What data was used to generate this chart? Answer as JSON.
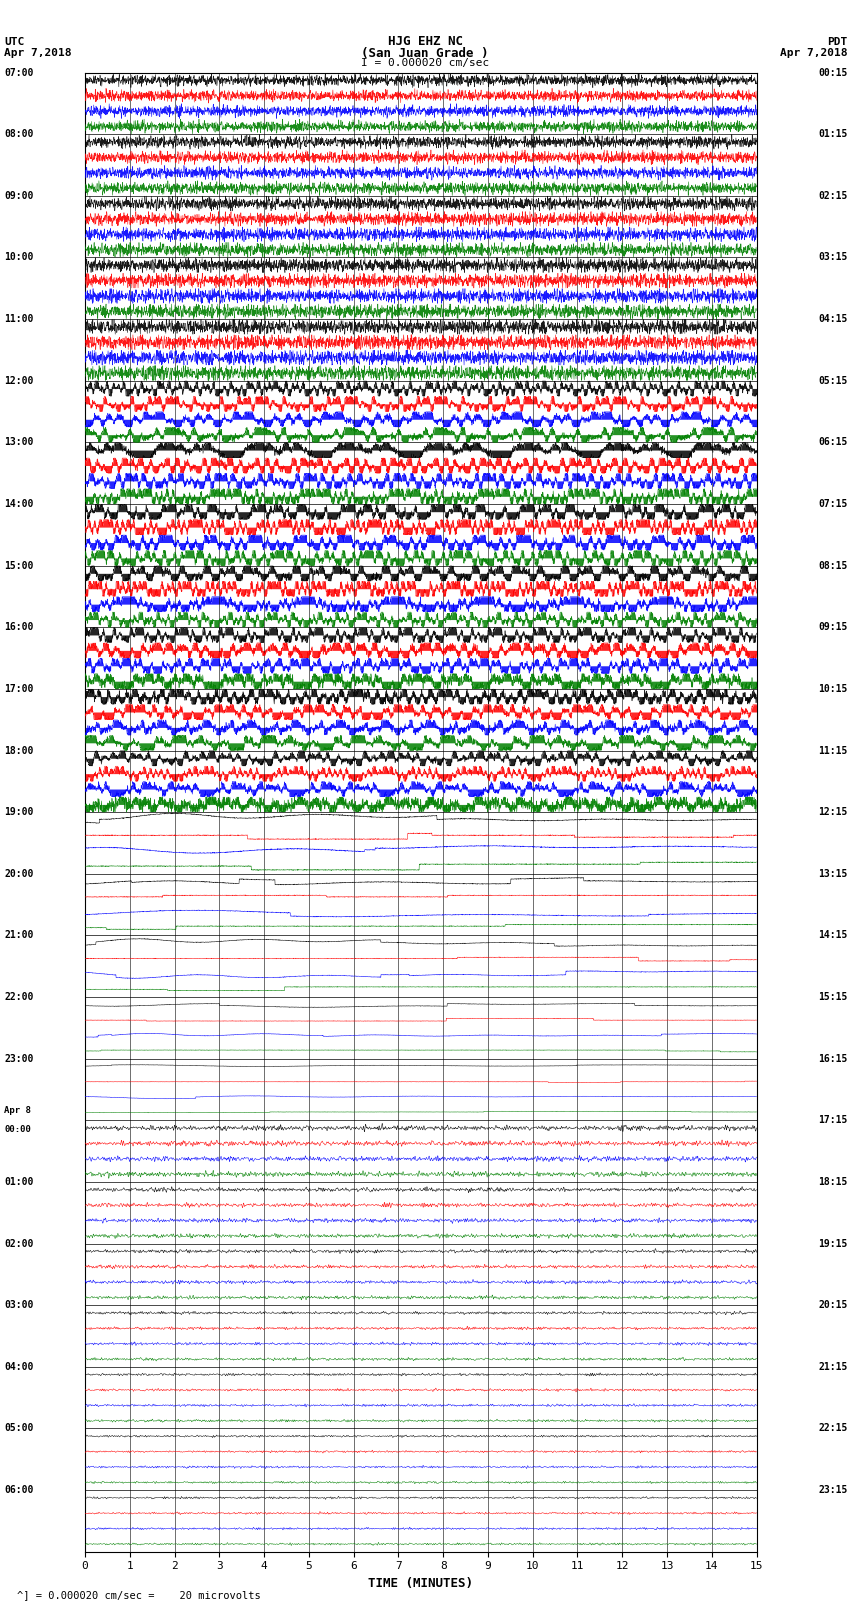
{
  "title_line1": "HJG EHZ NC",
  "title_line2": "(San Juan Grade )",
  "title_line3": "I = 0.000020 cm/sec",
  "label_left_top1": "UTC",
  "label_left_top2": "Apr 7,2018",
  "label_right_top1": "PDT",
  "label_right_top2": "Apr 7,2018",
  "xlabel": "TIME (MINUTES)",
  "footer": "^] = 0.000020 cm/sec =    20 microvolts",
  "x_min": 0,
  "x_max": 15,
  "x_ticks": [
    0,
    1,
    2,
    3,
    4,
    5,
    6,
    7,
    8,
    9,
    10,
    11,
    12,
    13,
    14,
    15
  ],
  "background_color": "#ffffff",
  "colors_cycle": [
    "black",
    "red",
    "blue",
    "green"
  ],
  "fig_width": 8.5,
  "fig_height": 16.13,
  "dpi": 100,
  "utc_labels": [
    "07:00",
    "08:00",
    "09:00",
    "10:00",
    "11:00",
    "12:00",
    "13:00",
    "14:00",
    "15:00",
    "16:00",
    "17:00",
    "18:00",
    "19:00",
    "20:00",
    "21:00",
    "22:00",
    "23:00",
    "Apr 8\n00:00",
    "01:00",
    "02:00",
    "03:00",
    "04:00",
    "05:00",
    "06:00"
  ],
  "pdt_labels": [
    "00:15",
    "01:15",
    "02:15",
    "03:15",
    "04:15",
    "05:15",
    "06:15",
    "07:15",
    "08:15",
    "09:15",
    "10:15",
    "11:15",
    "12:15",
    "13:15",
    "14:15",
    "15:15",
    "16:15",
    "17:15",
    "18:15",
    "19:15",
    "20:15",
    "21:15",
    "22:15",
    "23:15"
  ],
  "n_hour_rows": 24,
  "traces_per_hour": 4,
  "amplitude_profile": [
    0.35,
    0.38,
    0.42,
    0.45,
    0.48,
    0.7,
    0.9,
    0.95,
    0.85,
    0.8,
    0.75,
    0.65,
    0.55,
    0.45,
    0.35,
    0.25,
    0.18,
    0.15,
    0.12,
    0.1,
    0.08,
    0.07,
    0.06,
    0.06
  ]
}
